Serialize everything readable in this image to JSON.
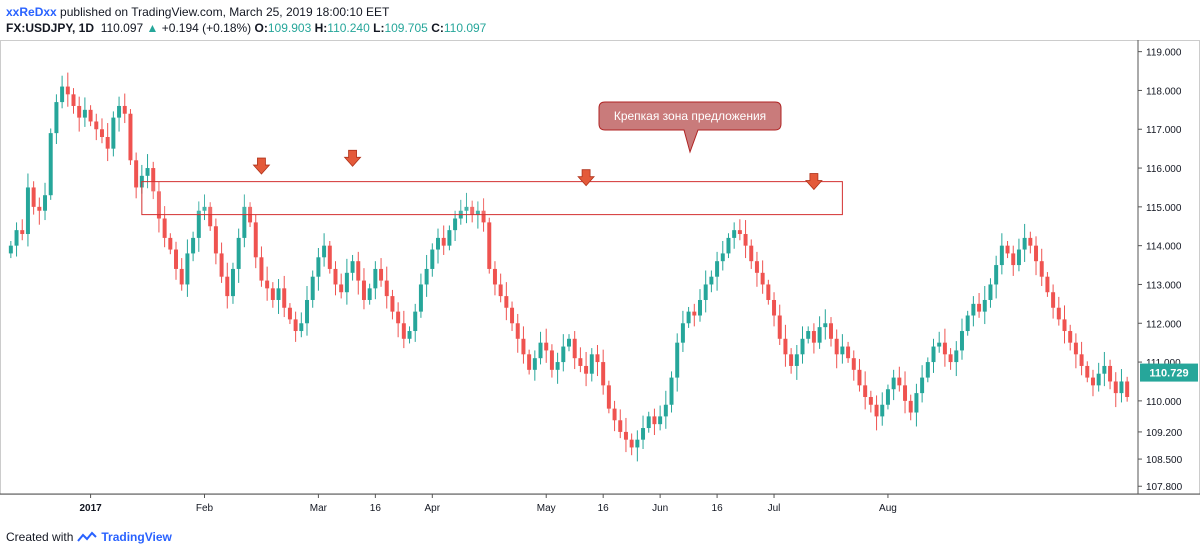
{
  "header": {
    "author": "xxReDxx",
    "published": "published on TradingView.com, March 25, 2019 18:00:10 EET"
  },
  "ohlc": {
    "symbol": "FX:USDJPY, 1D",
    "last": "110.097",
    "change": "+0.194 (+0.18%)",
    "o_label": "O:",
    "o": "109.903",
    "h_label": "H:",
    "h": "110.240",
    "l_label": "L:",
    "l": "109.705",
    "c_label": "C:",
    "c": "110.097"
  },
  "footer": {
    "created": "Created with",
    "brand": "TradingView"
  },
  "colors": {
    "up": "#26a69a",
    "down": "#ef5350",
    "zone": "#d32f2f",
    "callout": "#c97b7b",
    "price_tag": "#26a69a"
  },
  "chart_data": {
    "type": "candlestick",
    "title": "",
    "price_tag": "110.729",
    "y_ticks": [
      "119.000",
      "118.000",
      "117.000",
      "116.000",
      "115.000",
      "114.000",
      "113.000",
      "112.000",
      "111.000",
      "110.000",
      "109.200",
      "108.500",
      "107.800"
    ],
    "y_tick_values": [
      119.0,
      118.0,
      117.0,
      116.0,
      115.0,
      114.0,
      113.0,
      112.0,
      111.0,
      110.0,
      109.2,
      108.5,
      107.8
    ],
    "x_ticks": [
      "2017",
      "Feb",
      "Mar",
      "16",
      "Apr",
      "May",
      "16",
      "Jun",
      "16",
      "Jul",
      "Aug"
    ],
    "x_tick_index": [
      14,
      34,
      54,
      64,
      74,
      94,
      104,
      114,
      124,
      134,
      154
    ],
    "zone": {
      "low": 114.8,
      "high": 115.65,
      "start_index": 23,
      "end_index": 146,
      "label": "Крепкая зона предложения"
    },
    "arrows": [
      {
        "index": 44,
        "price": 116.0
      },
      {
        "index": 60,
        "price": 116.2
      },
      {
        "index": 101,
        "price": 115.7
      },
      {
        "index": 141,
        "price": 115.6
      }
    ],
    "closes": [
      114.0,
      114.4,
      114.3,
      115.5,
      115.0,
      114.9,
      115.3,
      116.9,
      117.7,
      118.1,
      117.9,
      117.6,
      117.3,
      117.5,
      117.2,
      117.0,
      116.8,
      116.5,
      117.3,
      117.6,
      117.4,
      116.2,
      115.5,
      115.8,
      116.0,
      115.4,
      114.7,
      114.2,
      113.9,
      113.4,
      113.0,
      113.8,
      114.2,
      114.9,
      115.0,
      114.5,
      113.8,
      113.2,
      112.7,
      113.4,
      114.2,
      115.0,
      114.6,
      113.7,
      113.1,
      112.9,
      112.6,
      112.9,
      112.4,
      112.1,
      111.8,
      112.0,
      112.6,
      113.2,
      113.7,
      114.0,
      113.4,
      113.0,
      112.8,
      113.3,
      113.6,
      113.1,
      112.6,
      112.9,
      113.4,
      113.1,
      112.7,
      112.3,
      112.0,
      111.6,
      111.8,
      112.3,
      113.0,
      113.4,
      113.9,
      114.2,
      114.0,
      114.4,
      114.7,
      114.9,
      115.0,
      114.8,
      114.9,
      114.6,
      113.4,
      113.0,
      112.7,
      112.4,
      112.0,
      111.6,
      111.2,
      110.8,
      111.1,
      111.5,
      111.3,
      110.8,
      111.0,
      111.4,
      111.6,
      111.1,
      110.9,
      110.7,
      111.2,
      111.0,
      110.4,
      109.8,
      109.5,
      109.2,
      109.0,
      108.8,
      109.0,
      109.3,
      109.6,
      109.4,
      109.6,
      109.9,
      110.6,
      111.5,
      112.0,
      112.3,
      112.2,
      112.6,
      113.0,
      113.2,
      113.6,
      113.8,
      114.2,
      114.4,
      114.3,
      114.0,
      113.6,
      113.3,
      113.0,
      112.6,
      112.2,
      111.6,
      111.2,
      110.9,
      111.2,
      111.6,
      111.8,
      111.5,
      111.9,
      112.0,
      111.6,
      111.2,
      111.4,
      111.1,
      110.8,
      110.4,
      110.1,
      109.9,
      109.6,
      109.9,
      110.3,
      110.6,
      110.4,
      110.0,
      109.7,
      110.2,
      110.6,
      111.0,
      111.4,
      111.5,
      111.2,
      111.0,
      111.3,
      111.8,
      112.2,
      112.5,
      112.3,
      112.6,
      113.0,
      113.5,
      114.0,
      113.8,
      113.5,
      113.9,
      114.2,
      114.0,
      113.6,
      113.2,
      112.8,
      112.4,
      112.1,
      111.8,
      111.5,
      111.2,
      110.9,
      110.6,
      110.4,
      110.7,
      110.9,
      110.5,
      110.2,
      110.5,
      110.1
    ]
  }
}
